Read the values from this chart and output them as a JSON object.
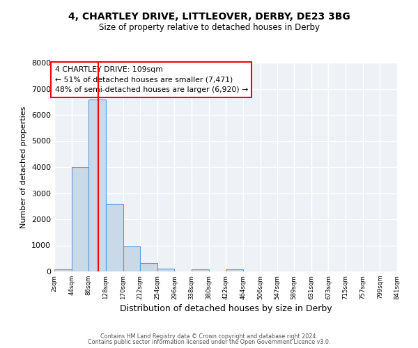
{
  "title1": "4, CHARTLEY DRIVE, LITTLEOVER, DERBY, DE23 3BG",
  "title2": "Size of property relative to detached houses in Derby",
  "xlabel": "Distribution of detached houses by size in Derby",
  "ylabel": "Number of detached properties",
  "bin_edges": [
    2,
    44,
    86,
    128,
    170,
    212,
    254,
    296,
    338,
    380,
    422,
    464,
    506,
    547,
    589,
    631,
    673,
    715,
    757,
    799,
    841
  ],
  "bar_heights": [
    70,
    4000,
    6600,
    2600,
    950,
    320,
    120,
    0,
    70,
    0,
    70,
    0,
    0,
    0,
    0,
    0,
    0,
    0,
    0,
    0
  ],
  "bar_color": "#c9d9e8",
  "bar_edgecolor": "#5b9bd5",
  "vline_x": 109,
  "vline_color": "red",
  "annotation_title": "4 CHARTLEY DRIVE: 109sqm",
  "annotation_line1": "← 51% of detached houses are smaller (7,471)",
  "annotation_line2": "48% of semi-detached houses are larger (6,920) →",
  "ylim": [
    0,
    8000
  ],
  "yticks": [
    0,
    1000,
    2000,
    3000,
    4000,
    5000,
    6000,
    7000,
    8000
  ],
  "bg_color": "#eef2f7",
  "grid_color": "#ffffff",
  "footnote1": "Contains HM Land Registry data © Crown copyright and database right 2024.",
  "footnote2": "Contains public sector information licensed under the Open Government Licence v3.0."
}
